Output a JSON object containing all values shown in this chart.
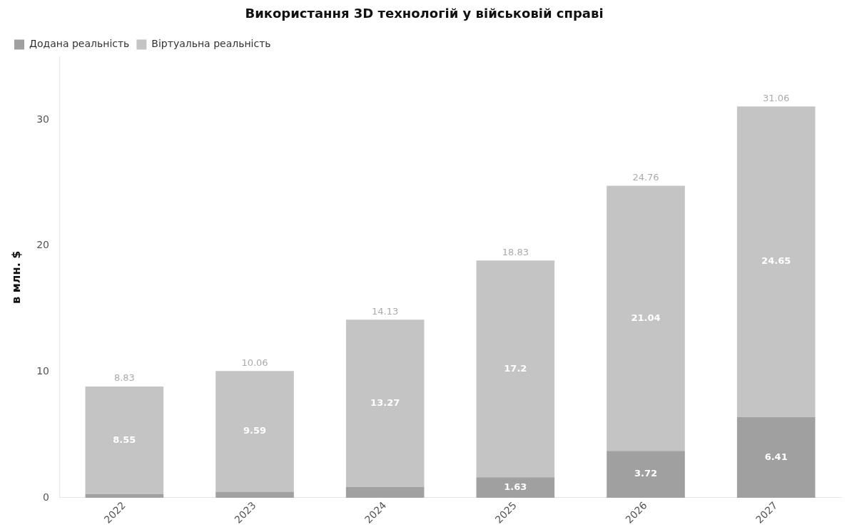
{
  "chart_data": {
    "type": "bar",
    "title": "Використання 3D технологій у військовій справі",
    "ylabel": "в млн. $",
    "categories": [
      "2022",
      "2023",
      "2024",
      "2025",
      "2026",
      "2027"
    ],
    "stacked": true,
    "series": [
      {
        "name": "Додана реальність",
        "color": "#a0a0a0",
        "values": [
          0.28,
          0.47,
          0.86,
          1.63,
          3.72,
          6.41
        ],
        "value_labels": [
          null,
          null,
          null,
          "1.63",
          "3.72",
          "6.41"
        ]
      },
      {
        "name": "Віртуальна реальність",
        "color": "#c4c4c4",
        "values": [
          8.55,
          9.59,
          13.27,
          17.2,
          21.04,
          24.65
        ],
        "value_labels": [
          "8.55",
          "9.59",
          "13.27",
          "17.2",
          "21.04",
          "24.65"
        ]
      }
    ],
    "totals": [
      "8.83",
      "10.06",
      "14.13",
      "18.83",
      "24.76",
      "31.06"
    ],
    "ylim": [
      0,
      35
    ],
    "yticks": [
      0,
      10,
      20,
      30
    ],
    "grid": false,
    "legend": "top left"
  }
}
